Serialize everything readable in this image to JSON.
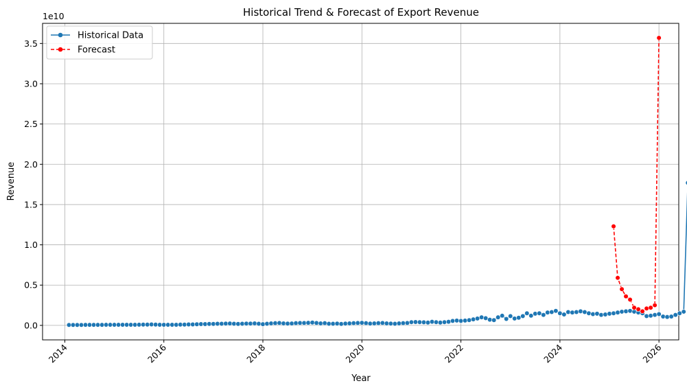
{
  "chart_data": {
    "type": "line",
    "title": "Historical Trend & Forecast of Export Revenue",
    "xlabel": "Year",
    "ylabel": "Revenue",
    "y_scale_label": "1e10",
    "xlim": [
      2013.55,
      2026.4
    ],
    "ylim": [
      -1.8,
      37.5
    ],
    "x_ticks": [
      2014,
      2016,
      2018,
      2020,
      2022,
      2024,
      2026
    ],
    "x_tick_labels": [
      "2014",
      "2016",
      "2018",
      "2020",
      "2022",
      "2024",
      "2026"
    ],
    "y_ticks": [
      0,
      5,
      10,
      15,
      20,
      25,
      30,
      35
    ],
    "y_tick_labels": [
      "0.0",
      "0.5",
      "1.0",
      "1.5",
      "2.0",
      "2.5",
      "3.0",
      "3.5"
    ],
    "grid": true,
    "legend_position": "top-left",
    "series": [
      {
        "name": "Historical Data",
        "style": "solid",
        "color": "#1f77b4",
        "y_unit_note": "values in units of 1e9",
        "x_start": "2014-02",
        "x_step_months": 1,
        "values": [
          0.05,
          0.05,
          0.05,
          0.05,
          0.06,
          0.06,
          0.06,
          0.06,
          0.06,
          0.07,
          0.07,
          0.07,
          0.07,
          0.08,
          0.08,
          0.08,
          0.08,
          0.09,
          0.1,
          0.1,
          0.12,
          0.1,
          0.08,
          0.08,
          0.07,
          0.08,
          0.08,
          0.1,
          0.1,
          0.12,
          0.12,
          0.14,
          0.16,
          0.16,
          0.18,
          0.18,
          0.2,
          0.2,
          0.22,
          0.24,
          0.2,
          0.18,
          0.2,
          0.22,
          0.22,
          0.25,
          0.2,
          0.15,
          0.2,
          0.25,
          0.28,
          0.3,
          0.25,
          0.22,
          0.24,
          0.28,
          0.3,
          0.3,
          0.32,
          0.35,
          0.3,
          0.25,
          0.28,
          0.2,
          0.2,
          0.22,
          0.18,
          0.22,
          0.25,
          0.28,
          0.3,
          0.32,
          0.28,
          0.22,
          0.25,
          0.28,
          0.3,
          0.25,
          0.22,
          0.2,
          0.25,
          0.28,
          0.3,
          0.4,
          0.42,
          0.4,
          0.38,
          0.35,
          0.45,
          0.4,
          0.35,
          0.4,
          0.45,
          0.55,
          0.6,
          0.55,
          0.6,
          0.65,
          0.75,
          0.85,
          1.0,
          0.9,
          0.7,
          0.65,
          1.0,
          1.2,
          0.8,
          1.15,
          0.85,
          0.95,
          1.15,
          1.5,
          1.2,
          1.45,
          1.5,
          1.3,
          1.6,
          1.65,
          1.8,
          1.5,
          1.35,
          1.65,
          1.6,
          1.65,
          1.75,
          1.65,
          1.5,
          1.4,
          1.45,
          1.3,
          1.35,
          1.45,
          1.5,
          1.6,
          1.7,
          1.75,
          1.8,
          1.7,
          1.6,
          1.5,
          1.15,
          1.2,
          1.3,
          1.4,
          1.1,
          1.05,
          1.1,
          1.3,
          1.5,
          1.7,
          17.7
        ]
      },
      {
        "name": "Forecast",
        "style": "dashed",
        "color": "#ff0000",
        "y_unit_note": "values in units of 1e9",
        "x_start": "2025-02",
        "x_step_months": 1,
        "values": [
          12.3,
          5.9,
          4.5,
          3.6,
          3.2,
          2.2,
          2.0,
          1.75,
          2.1,
          2.2,
          2.5,
          35.7
        ]
      }
    ]
  }
}
